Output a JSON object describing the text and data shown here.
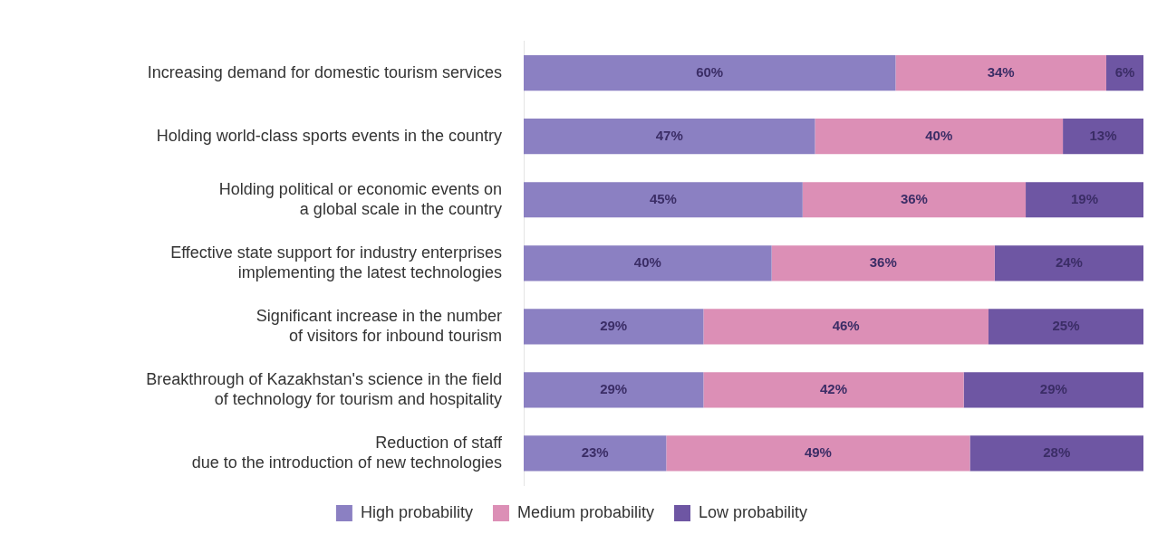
{
  "chart_data": {
    "type": "bar",
    "orientation": "horizontal",
    "stacked": true,
    "categories": [
      "Increasing demand for domestic tourism services",
      "Holding world-class sports events in the country",
      "Holding political or economic events on\na global scale in the country",
      "Effective state support for industry enterprises\nimplementing the latest technologies",
      "Significant increase in the number\nof visitors for inbound tourism",
      "Breakthrough of Kazakhstan's science in the field\nof technology for tourism and hospitality",
      "Reduction of staff\ndue to the introduction of new technologies"
    ],
    "series": [
      {
        "name": "High probability",
        "color": "#8b80c2",
        "values": [
          60,
          47,
          45,
          40,
          29,
          29,
          23
        ],
        "value_labels": [
          "60%",
          "47%",
          "45%",
          "40%",
          "29%",
          "29%",
          "23%"
        ]
      },
      {
        "name": "Medium probability",
        "color": "#dc8fb6",
        "values": [
          34,
          40,
          36,
          36,
          46,
          42,
          49
        ],
        "value_labels": [
          "34%",
          "40%",
          "36%",
          "36%",
          "46%",
          "42%",
          "49%"
        ]
      },
      {
        "name": "Low probability",
        "color": "#6e56a3",
        "values": [
          6,
          13,
          19,
          24,
          25,
          29,
          28
        ],
        "value_labels": [
          "6%",
          "13%",
          "19%",
          "24%",
          "25%",
          "29%",
          "28%"
        ]
      }
    ],
    "xlim": [
      0,
      100
    ],
    "tick_labels": "y",
    "grid": false,
    "legend": "bottom"
  }
}
